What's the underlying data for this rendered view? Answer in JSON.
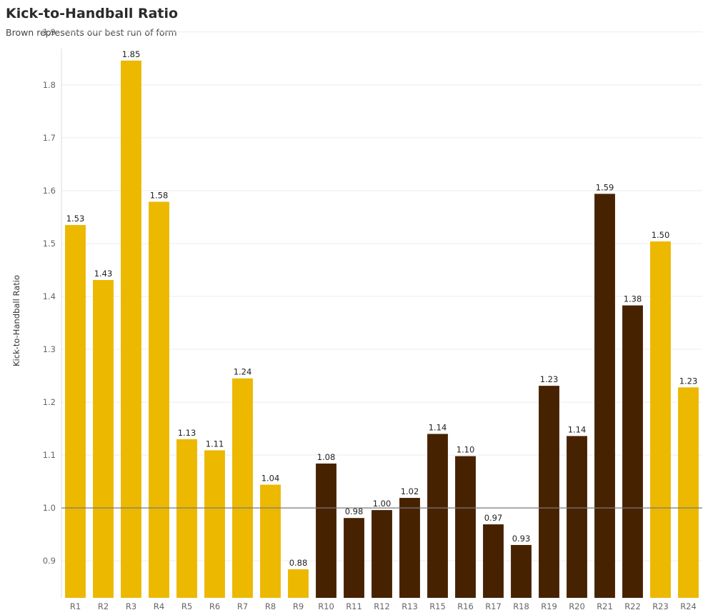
{
  "header": {
    "title": "Kick-to-Handball Ratio",
    "subtitle": "Brown represents our best run of form"
  },
  "colors": {
    "gold": "#ecb800",
    "brown": "#472200",
    "gridline": "#ececec",
    "reference_line": "#7a7a7a"
  },
  "chart_data": {
    "type": "bar",
    "title": "Kick-to-Handball Ratio",
    "subtitle": "Brown represents our best run of form",
    "xlabel": "",
    "ylabel": "Kick-to-Handball Ratio",
    "ylim": [
      0.83,
      1.92
    ],
    "yticks": [
      0.9,
      1.0,
      1.1,
      1.2,
      1.3,
      1.4,
      1.5,
      1.6,
      1.7,
      1.8,
      1.9
    ],
    "ytick_labels": [
      "0.9",
      "1.0",
      "1.1",
      "1.2",
      "1.3",
      "1.4",
      "1.5",
      "1.6",
      "1.7",
      "1.8",
      "1.9"
    ],
    "grid": true,
    "reference_line": 1.0,
    "categories": [
      "R1",
      "R2",
      "R3",
      "R4",
      "R5",
      "R6",
      "R7",
      "R8",
      "R9",
      "R10",
      "R11",
      "R12",
      "R13",
      "R15",
      "R16",
      "R17",
      "R18",
      "R19",
      "R20",
      "R21",
      "R22",
      "R23",
      "R24"
    ],
    "values": [
      1.535,
      1.431,
      1.846,
      1.579,
      1.13,
      1.109,
      1.245,
      1.044,
      0.884,
      1.084,
      0.981,
      0.996,
      1.019,
      1.14,
      1.098,
      0.969,
      0.93,
      1.231,
      1.136,
      1.594,
      1.383,
      1.504,
      1.228
    ],
    "value_labels": [
      "1.53",
      "1.43",
      "1.85",
      "1.58",
      "1.13",
      "1.11",
      "1.24",
      "1.04",
      "0.88",
      "1.08",
      "0.98",
      "1.00",
      "1.02",
      "1.14",
      "1.10",
      "0.97",
      "0.93",
      "1.23",
      "1.14",
      "1.59",
      "1.38",
      "1.50",
      "1.23"
    ],
    "bar_colors": [
      "gold",
      "gold",
      "gold",
      "gold",
      "gold",
      "gold",
      "gold",
      "gold",
      "gold",
      "brown",
      "brown",
      "brown",
      "brown",
      "brown",
      "brown",
      "brown",
      "brown",
      "brown",
      "brown",
      "brown",
      "brown",
      "gold",
      "gold"
    ]
  }
}
